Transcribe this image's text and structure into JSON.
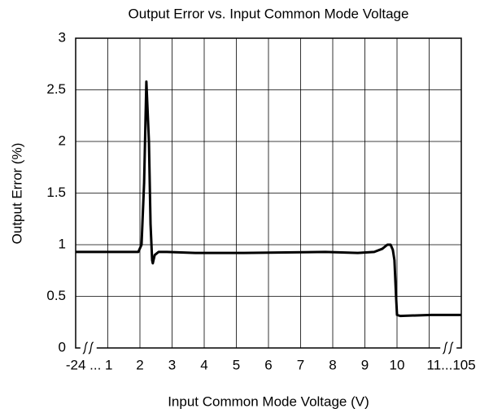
{
  "chart_data": {
    "type": "line",
    "title": "Output Error vs. Input Common Mode Voltage",
    "xlabel": "Input Common Mode Voltage (V)",
    "ylabel": "Output Error (%)",
    "xlim": [
      0,
      12
    ],
    "ylim": [
      0,
      3
    ],
    "xticks": [
      {
        "value": 1,
        "label": "-24 ... 1"
      },
      2,
      3,
      4,
      5,
      6,
      7,
      8,
      9,
      10,
      {
        "value": 11,
        "label": "11...105"
      }
    ],
    "yticks": [
      0,
      0.5,
      1,
      1.5,
      2,
      2.5,
      3
    ],
    "grid": true,
    "series": [
      {
        "color": "#000000",
        "x": [
          0,
          1.44,
          1.95,
          2.05,
          2.13,
          2.2,
          2.28,
          2.33,
          2.38,
          2.4,
          2.46,
          2.58,
          2.84,
          3.72,
          5.24,
          7.77,
          8.78,
          9.29,
          9.54,
          9.7,
          9.8,
          9.87,
          9.92,
          9.97,
          10.0,
          10.1,
          11.06,
          12
        ],
        "values": [
          0.93,
          0.93,
          0.93,
          1.0,
          1.6,
          2.58,
          2.0,
          1.2,
          0.85,
          0.82,
          0.9,
          0.93,
          0.93,
          0.92,
          0.92,
          0.93,
          0.92,
          0.93,
          0.96,
          1.0,
          1.0,
          0.95,
          0.85,
          0.5,
          0.32,
          0.31,
          0.32,
          0.32
        ]
      }
    ]
  }
}
